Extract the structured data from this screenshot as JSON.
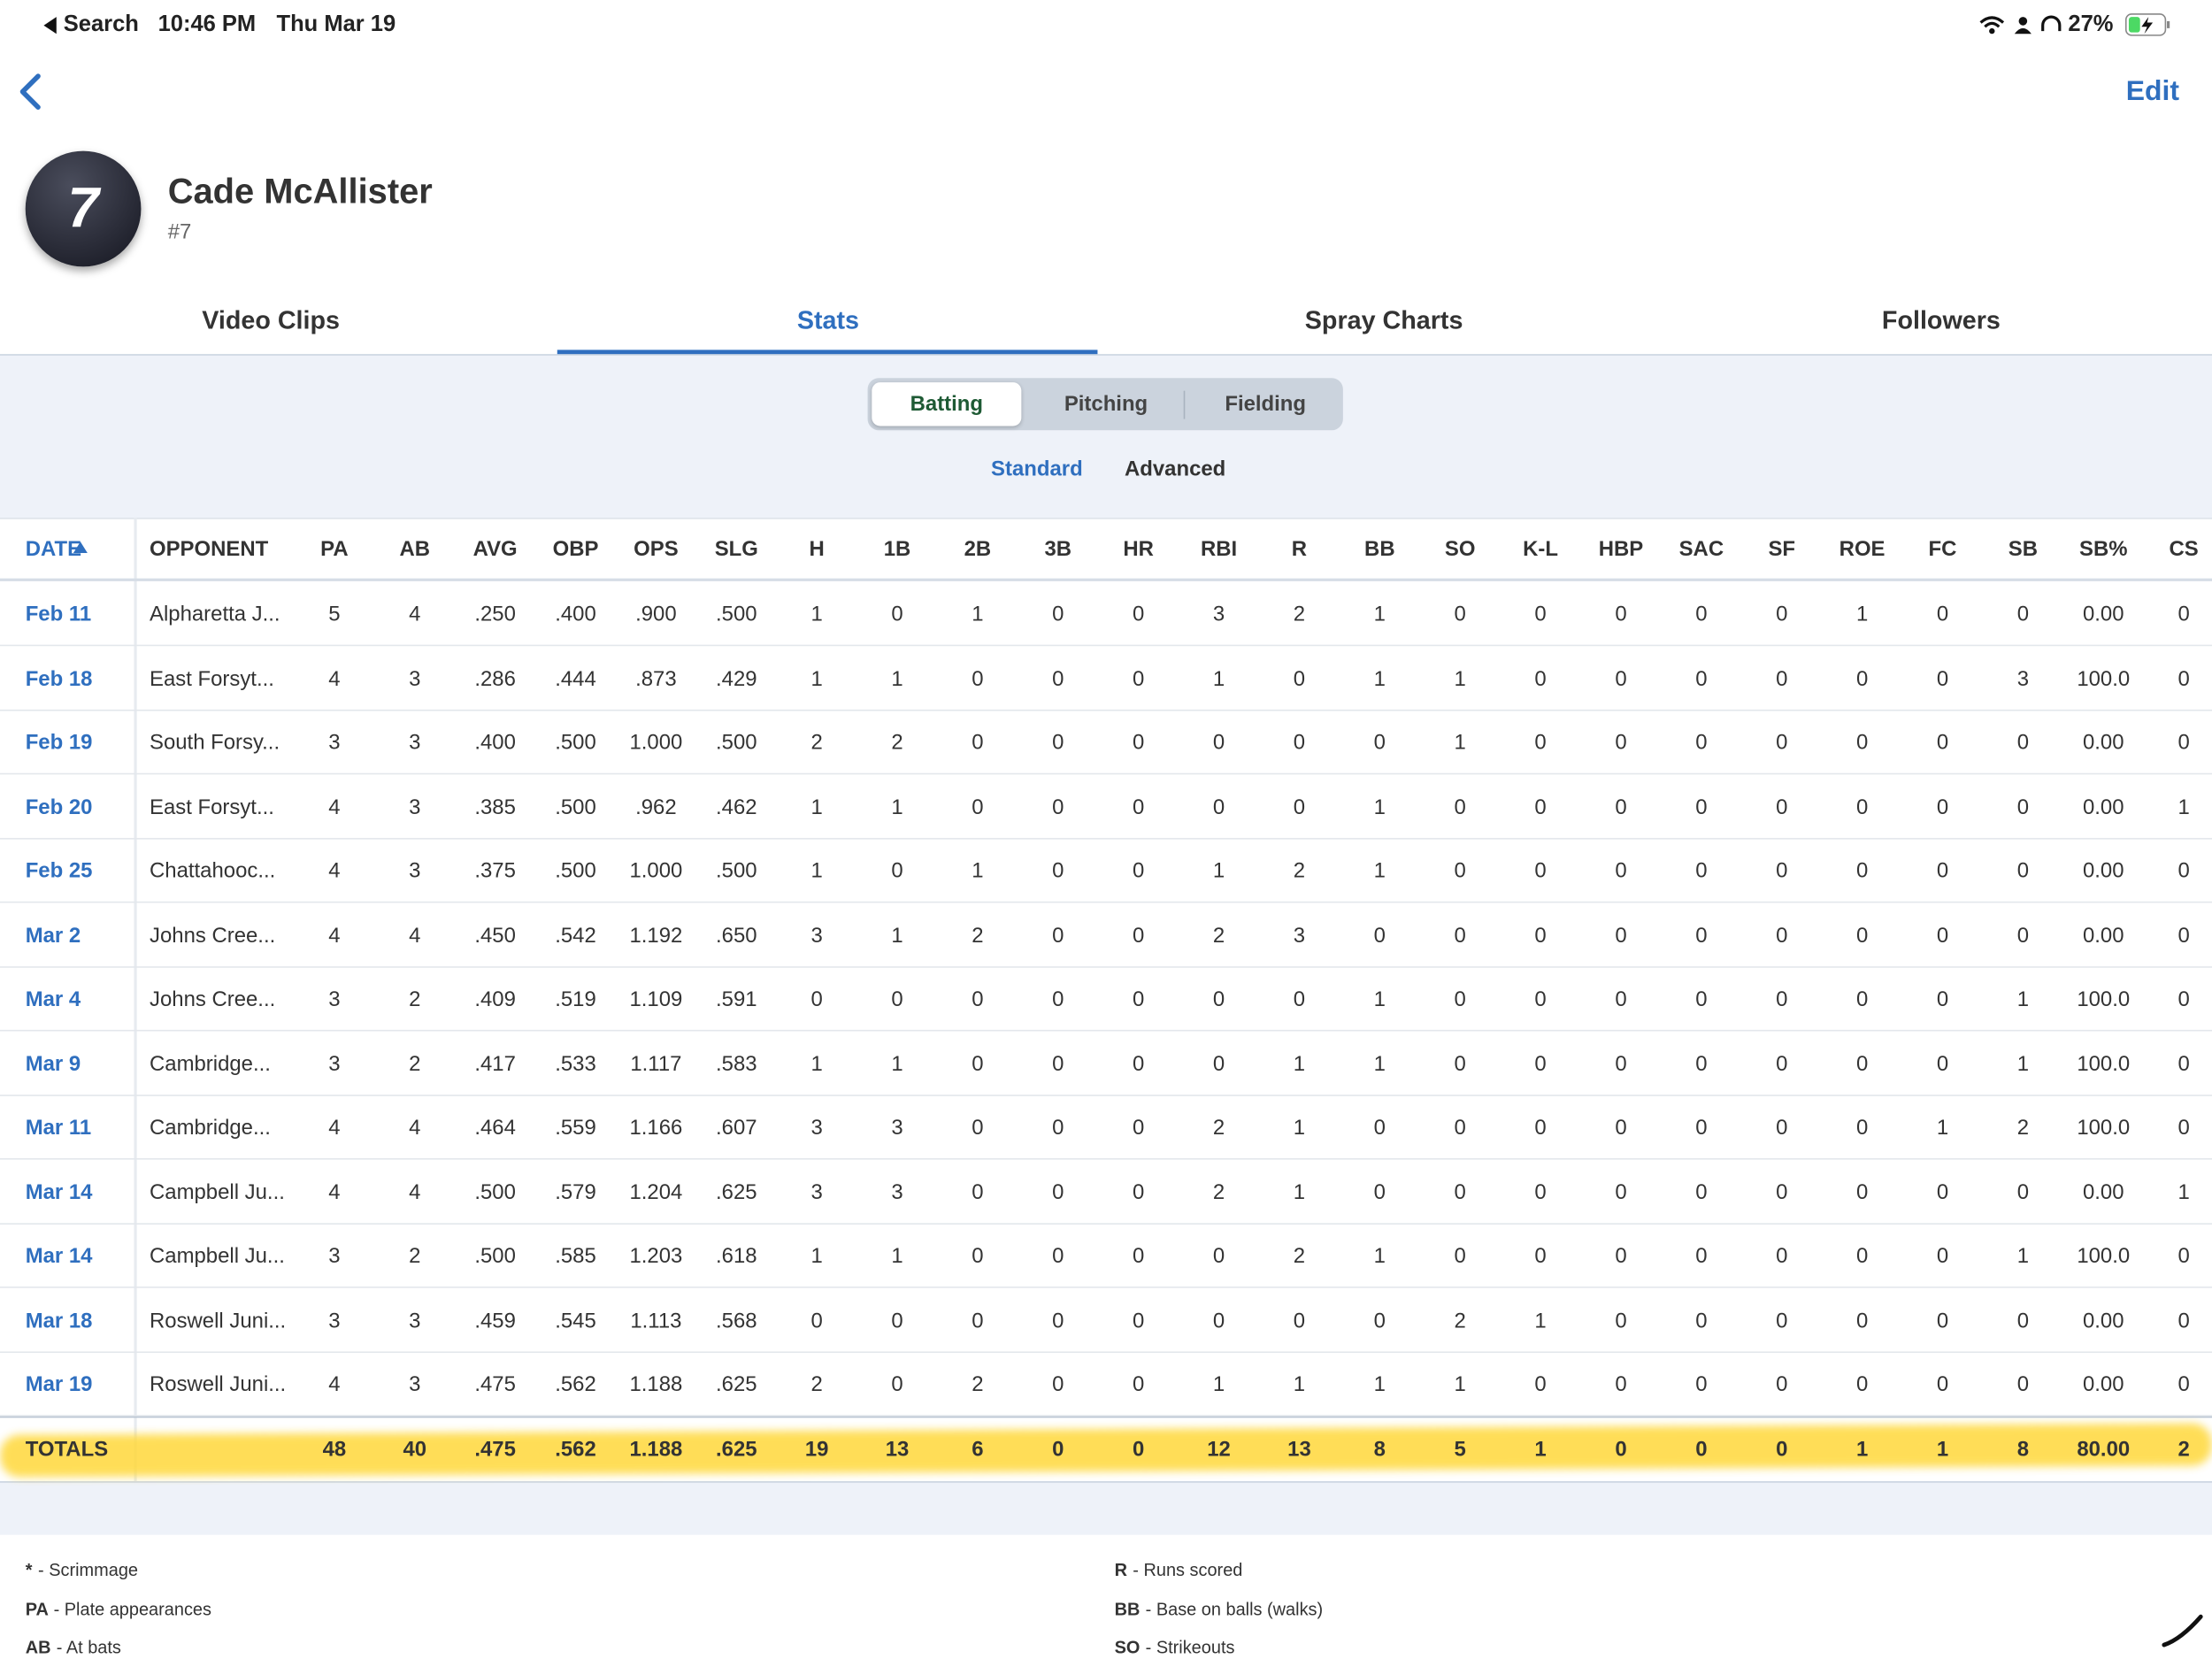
{
  "status": {
    "back": "Search",
    "time": "10:46 PM",
    "date": "Thu Mar 19",
    "battery": "27%"
  },
  "nav": {
    "edit": "Edit"
  },
  "player": {
    "initial": "7",
    "name": "Cade McAllister",
    "number": "#7"
  },
  "tabs": [
    "Video Clips",
    "Stats",
    "Spray Charts",
    "Followers"
  ],
  "segments": [
    "Batting",
    "Pitching",
    "Fielding"
  ],
  "modes": [
    "Standard",
    "Advanced"
  ],
  "table": {
    "headers": [
      "DATE",
      "OPPONENT",
      "PA",
      "AB",
      "AVG",
      "OBP",
      "OPS",
      "SLG",
      "H",
      "1B",
      "2B",
      "3B",
      "HR",
      "RBI",
      "R",
      "BB",
      "SO",
      "K-L",
      "HBP",
      "SAC",
      "SF",
      "ROE",
      "FC",
      "SB",
      "SB%",
      "CS"
    ],
    "rows": [
      {
        "date": "Feb 11",
        "opponent": "Alpharetta J...",
        "stats": [
          "5",
          "4",
          ".250",
          ".400",
          ".900",
          ".500",
          "1",
          "0",
          "1",
          "0",
          "0",
          "3",
          "2",
          "1",
          "0",
          "0",
          "0",
          "0",
          "0",
          "1",
          "0",
          "0",
          "0.00",
          "0"
        ]
      },
      {
        "date": "Feb 18",
        "opponent": "East Forsyt...",
        "stats": [
          "4",
          "3",
          ".286",
          ".444",
          ".873",
          ".429",
          "1",
          "1",
          "0",
          "0",
          "0",
          "1",
          "0",
          "1",
          "1",
          "0",
          "0",
          "0",
          "0",
          "0",
          "0",
          "3",
          "100.0",
          "0"
        ]
      },
      {
        "date": "Feb 19",
        "opponent": "South Forsy...",
        "stats": [
          "3",
          "3",
          ".400",
          ".500",
          "1.000",
          ".500",
          "2",
          "2",
          "0",
          "0",
          "0",
          "0",
          "0",
          "0",
          "1",
          "0",
          "0",
          "0",
          "0",
          "0",
          "0",
          "0",
          "0.00",
          "0"
        ]
      },
      {
        "date": "Feb 20",
        "opponent": "East Forsyt...",
        "stats": [
          "4",
          "3",
          ".385",
          ".500",
          ".962",
          ".462",
          "1",
          "1",
          "0",
          "0",
          "0",
          "0",
          "0",
          "1",
          "0",
          "0",
          "0",
          "0",
          "0",
          "0",
          "0",
          "0",
          "0.00",
          "1"
        ]
      },
      {
        "date": "Feb 25",
        "opponent": "Chattahooc...",
        "stats": [
          "4",
          "3",
          ".375",
          ".500",
          "1.000",
          ".500",
          "1",
          "0",
          "1",
          "0",
          "0",
          "1",
          "2",
          "1",
          "0",
          "0",
          "0",
          "0",
          "0",
          "0",
          "0",
          "0",
          "0.00",
          "0"
        ]
      },
      {
        "date": "Mar 2",
        "opponent": "Johns Cree...",
        "stats": [
          "4",
          "4",
          ".450",
          ".542",
          "1.192",
          ".650",
          "3",
          "1",
          "2",
          "0",
          "0",
          "2",
          "3",
          "0",
          "0",
          "0",
          "0",
          "0",
          "0",
          "0",
          "0",
          "0",
          "0.00",
          "0"
        ]
      },
      {
        "date": "Mar 4",
        "opponent": "Johns Cree...",
        "stats": [
          "3",
          "2",
          ".409",
          ".519",
          "1.109",
          ".591",
          "0",
          "0",
          "0",
          "0",
          "0",
          "0",
          "0",
          "1",
          "0",
          "0",
          "0",
          "0",
          "0",
          "0",
          "0",
          "1",
          "100.0",
          "0"
        ]
      },
      {
        "date": "Mar 9",
        "opponent": "Cambridge...",
        "stats": [
          "3",
          "2",
          ".417",
          ".533",
          "1.117",
          ".583",
          "1",
          "1",
          "0",
          "0",
          "0",
          "0",
          "1",
          "1",
          "0",
          "0",
          "0",
          "0",
          "0",
          "0",
          "0",
          "1",
          "100.0",
          "0"
        ]
      },
      {
        "date": "Mar 11",
        "opponent": "Cambridge...",
        "stats": [
          "4",
          "4",
          ".464",
          ".559",
          "1.166",
          ".607",
          "3",
          "3",
          "0",
          "0",
          "0",
          "2",
          "1",
          "0",
          "0",
          "0",
          "0",
          "0",
          "0",
          "0",
          "1",
          "2",
          "100.0",
          "0"
        ]
      },
      {
        "date": "Mar 14",
        "opponent": "Campbell Ju...",
        "stats": [
          "4",
          "4",
          ".500",
          ".579",
          "1.204",
          ".625",
          "3",
          "3",
          "0",
          "0",
          "0",
          "2",
          "1",
          "0",
          "0",
          "0",
          "0",
          "0",
          "0",
          "0",
          "0",
          "0",
          "0.00",
          "1"
        ]
      },
      {
        "date": "Mar 14",
        "opponent": "Campbell Ju...",
        "stats": [
          "3",
          "2",
          ".500",
          ".585",
          "1.203",
          ".618",
          "1",
          "1",
          "0",
          "0",
          "0",
          "0",
          "2",
          "1",
          "0",
          "0",
          "0",
          "0",
          "0",
          "0",
          "0",
          "1",
          "100.0",
          "0"
        ]
      },
      {
        "date": "Mar 18",
        "opponent": "Roswell Juni...",
        "stats": [
          "3",
          "3",
          ".459",
          ".545",
          "1.113",
          ".568",
          "0",
          "0",
          "0",
          "0",
          "0",
          "0",
          "0",
          "0",
          "2",
          "1",
          "0",
          "0",
          "0",
          "0",
          "0",
          "0",
          "0.00",
          "0"
        ]
      },
      {
        "date": "Mar 19",
        "opponent": "Roswell Juni...",
        "stats": [
          "4",
          "3",
          ".475",
          ".562",
          "1.188",
          ".625",
          "2",
          "0",
          "2",
          "0",
          "0",
          "1",
          "1",
          "1",
          "1",
          "0",
          "0",
          "0",
          "0",
          "0",
          "0",
          "0",
          "0.00",
          "0"
        ]
      }
    ],
    "totals": {
      "label": "TOTALS",
      "stats": [
        "48",
        "40",
        ".475",
        ".562",
        "1.188",
        ".625",
        "19",
        "13",
        "6",
        "0",
        "0",
        "12",
        "13",
        "8",
        "5",
        "1",
        "0",
        "0",
        "0",
        "1",
        "1",
        "8",
        "80.00",
        "2"
      ]
    }
  },
  "legend": {
    "left": [
      {
        "abbr": "*",
        "text": "- Scrimmage"
      },
      {
        "abbr": "PA",
        "text": "- Plate appearances"
      },
      {
        "abbr": "AB",
        "text": "- At bats"
      }
    ],
    "right": [
      {
        "abbr": "R",
        "text": "- Runs scored"
      },
      {
        "abbr": "BB",
        "text": "- Base on balls (walks)"
      },
      {
        "abbr": "SO",
        "text": "- Strikeouts"
      }
    ]
  }
}
